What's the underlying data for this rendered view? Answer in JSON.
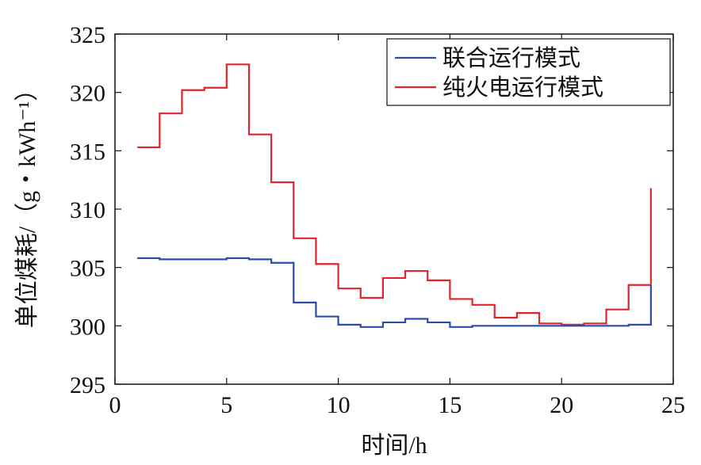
{
  "chart_data": {
    "type": "line",
    "step": "post",
    "xlabel": "时间/h",
    "ylabel": "单位煤耗/（g・kWh⁻¹）",
    "xlim": [
      0,
      25
    ],
    "ylim": [
      295,
      325
    ],
    "xticks": [
      0,
      5,
      10,
      15,
      20,
      25
    ],
    "yticks": [
      295,
      300,
      305,
      310,
      315,
      320,
      325
    ],
    "grid": false,
    "legend_position": "top-right",
    "x": [
      1,
      2,
      3,
      4,
      5,
      6,
      7,
      8,
      9,
      10,
      11,
      12,
      13,
      14,
      15,
      16,
      17,
      18,
      19,
      20,
      21,
      22,
      23,
      24
    ],
    "series": [
      {
        "name": "联合运行模式",
        "color": "#2a4ea8",
        "values": [
          305.8,
          305.7,
          305.7,
          305.7,
          305.8,
          305.7,
          305.4,
          302.0,
          300.8,
          300.1,
          299.9,
          300.3,
          300.6,
          300.3,
          299.9,
          300.0,
          300.0,
          300.0,
          300.0,
          300.0,
          300.0,
          300.0,
          300.1,
          303.5
        ]
      },
      {
        "name": "纯火电运行模式",
        "color": "#e0242e",
        "values": [
          315.3,
          318.2,
          320.2,
          320.4,
          322.4,
          316.4,
          312.3,
          307.5,
          305.3,
          303.2,
          302.4,
          304.1,
          304.7,
          303.9,
          302.3,
          301.8,
          300.7,
          301.1,
          300.2,
          300.1,
          300.2,
          301.4,
          303.5,
          311.8
        ]
      }
    ]
  }
}
